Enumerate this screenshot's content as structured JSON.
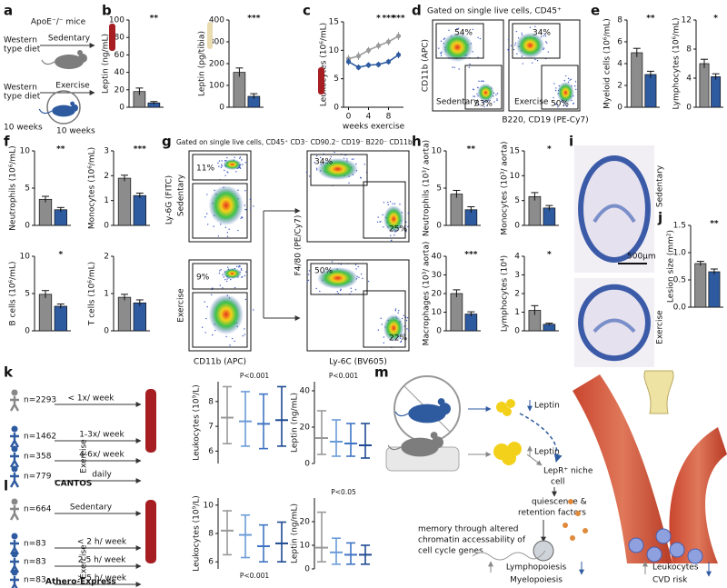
{
  "panel_labels": [
    "a",
    "b",
    "c",
    "d",
    "e",
    "f",
    "g",
    "h",
    "i",
    "j",
    "k",
    "l",
    "m"
  ],
  "a": {
    "title": "ApoE⁻/⁻ mice",
    "diet_1": [
      "Western",
      "type diet"
    ],
    "group_1": "Sedentary",
    "diet_2": [
      "Western",
      "type diet"
    ],
    "duration_1": "10 weeks",
    "group_2": "Exercise",
    "duration_2": "10 weeks"
  },
  "d": {
    "gate_title": "Gated on single live cells, CD45⁺",
    "y_label": "CD11b (APC)",
    "x_label": "B220, CD19 (PE-Cy7)",
    "sedentary": {
      "name": "Sedentary",
      "myeloid": "54%",
      "lymphoid": "33%"
    },
    "exercise": {
      "name": "Exercise",
      "myeloid": "34%",
      "lymphoid": "50%"
    }
  },
  "g": {
    "gate_title": "Gated on single live cells, CD45⁺ CD3⁻ CD90.2⁻ CD19⁻ B220⁻ CD11b⁺",
    "left_y_label": "Ly-6G (FITC)",
    "left_x_label": "CD11b (APC)",
    "right_y_label": "F4/80 (PE/Cy7)",
    "right_x_label": "Ly-6C (BV605)",
    "sedentary": {
      "name": "Sedentary",
      "neutrophils": "11%",
      "macrophages": "34%",
      "monocytes": "25%"
    },
    "exercise": {
      "name": "Exercise",
      "neutrophils": "9%",
      "macrophages": "50%",
      "monocytes": "22%"
    }
  },
  "i": {
    "sedentary": "Sedentary",
    "exercise": "Exercise",
    "scale_bar": "500μm"
  },
  "k": {
    "rows": [
      {
        "n": "n=2293",
        "label": "< 1x/ week"
      },
      {
        "n": "n=1462",
        "label": "1-3x/ week"
      },
      {
        "n": "n=358",
        "label": "4-6x/ week"
      },
      {
        "n": "n=779",
        "label": "daily"
      }
    ],
    "group": "Exercise",
    "cohort": "CANTOS"
  },
  "l": {
    "rows": [
      {
        "n": "n=664",
        "label": "Sedentary"
      },
      {
        "n": "n=83",
        "label": "< 2 h/ week"
      },
      {
        "n": "n=83",
        "label": "2-5 h/ week"
      },
      {
        "n": "n=83",
        "label": "> 5 h/ week"
      }
    ],
    "group": "Exercise",
    "cohort": "Athero-Express"
  },
  "m": {
    "leptin_down": "Leptin",
    "leptin_up": "Leptin",
    "niche": [
      "LepR⁺ niche",
      "cell"
    ],
    "factors": [
      "quiescence &",
      "retention factors"
    ],
    "memory": [
      "memory through altered",
      "chromatin accessability of",
      "cell cycle genes"
    ],
    "poiesis": [
      "Lymphopoiesis",
      "Myelopoiesis"
    ],
    "outcome": [
      "Leukocytes",
      "CVD risk"
    ]
  },
  "chart_data": [
    {
      "type": "bar",
      "ylabel": "Leptin (ng/mL)",
      "ylim": [
        0,
        100
      ],
      "yticks": [
        0,
        20,
        40,
        60,
        80,
        100
      ],
      "values": [
        18,
        5
      ],
      "errors": [
        4,
        1.5
      ],
      "colors": [
        "#8c8c8c",
        "#2e5aa0"
      ],
      "annotation": "**"
    },
    {
      "type": "bar",
      "ylabel": "Leptin (pg/tibia)",
      "ylim": [
        0,
        400
      ],
      "yticks": [
        0,
        100,
        200,
        300,
        400
      ],
      "values": [
        160,
        50
      ],
      "errors": [
        20,
        12
      ],
      "colors": [
        "#8c8c8c",
        "#2e5aa0"
      ],
      "annotation": "***"
    },
    {
      "type": "line",
      "ylabel": "Leukocytes (10⁶/mL)",
      "xlabel": "weeks exercise",
      "xlim": [
        -1,
        11
      ],
      "xticks": [
        0,
        4,
        8
      ],
      "ylim": [
        0,
        15
      ],
      "yticks": [
        0,
        5,
        10,
        15
      ],
      "x": [
        0,
        2,
        4,
        6,
        8,
        10
      ],
      "series": [
        {
          "color": "#9a9a9a",
          "values": [
            8.5,
            9,
            10,
            10.8,
            11.5,
            12.5
          ],
          "errors": [
            0.7,
            0.7,
            0.6,
            0.6,
            0.6,
            0.7
          ]
        },
        {
          "color": "#2e5aa0",
          "values": [
            8,
            7,
            7.4,
            7.5,
            8,
            9.2
          ],
          "errors": [
            0.6,
            0.5,
            0.5,
            0.5,
            0.5,
            0.6
          ]
        }
      ],
      "annotations": [
        {
          "x": 6,
          "label": "*"
        },
        {
          "x": 8,
          "label": "***"
        },
        {
          "x": 10,
          "label": "***"
        }
      ]
    },
    {
      "type": "bar",
      "ylabel": "Myeloid cells (10⁶/mL)",
      "ylim": [
        0,
        8
      ],
      "yticks": [
        0,
        2,
        4,
        6,
        8
      ],
      "values": [
        5,
        3
      ],
      "errors": [
        0.4,
        0.3
      ],
      "colors": [
        "#8c8c8c",
        "#2e5aa0"
      ],
      "annotation": "**"
    },
    {
      "type": "bar",
      "ylabel": "Lymphocytes (10⁶/mL)",
      "ylim": [
        0,
        12
      ],
      "yticks": [
        0,
        4,
        8,
        12
      ],
      "values": [
        6,
        4.2
      ],
      "errors": [
        0.6,
        0.4
      ],
      "colors": [
        "#8c8c8c",
        "#2e5aa0"
      ],
      "annotation": "*"
    },
    {
      "type": "bar",
      "ylabel": "Neutrophils (10⁶/mL)",
      "ylim": [
        0,
        10
      ],
      "yticks": [
        0,
        5,
        10
      ],
      "values": [
        3.5,
        2.1
      ],
      "errors": [
        0.4,
        0.3
      ],
      "colors": [
        "#8c8c8c",
        "#2e5aa0"
      ],
      "annotation": "**"
    },
    {
      "type": "bar",
      "ylabel": "Monocytes (10⁶/mL)",
      "ylim": [
        0,
        3
      ],
      "yticks": [
        0,
        1,
        2,
        3
      ],
      "values": [
        1.9,
        1.2
      ],
      "errors": [
        0.12,
        0.1
      ],
      "colors": [
        "#8c8c8c",
        "#2e5aa0"
      ],
      "annotation": "***"
    },
    {
      "type": "bar",
      "ylabel": "B cells (10⁶/mL)",
      "ylim": [
        0,
        10
      ],
      "yticks": [
        0,
        5,
        10
      ],
      "values": [
        4.9,
        3.3
      ],
      "errors": [
        0.5,
        0.3
      ],
      "colors": [
        "#8c8c8c",
        "#2e5aa0"
      ],
      "annotation": "*"
    },
    {
      "type": "bar",
      "ylabel": "T cells (10⁶/mL)",
      "ylim": [
        0,
        2
      ],
      "yticks": [
        0,
        1,
        2
      ],
      "values": [
        0.9,
        0.75
      ],
      "errors": [
        0.08,
        0.08
      ],
      "colors": [
        "#8c8c8c",
        "#2e5aa0"
      ]
    },
    {
      "type": "bar",
      "ylabel": "Neutrophils (10³/ aorta)",
      "ylim": [
        0,
        10
      ],
      "yticks": [
        0,
        5,
        10
      ],
      "values": [
        4.2,
        2.1
      ],
      "errors": [
        0.5,
        0.4
      ],
      "colors": [
        "#8c8c8c",
        "#2e5aa0"
      ],
      "annotation": "**"
    },
    {
      "type": "bar",
      "ylabel": "Monocytes (10³/ aorta)",
      "ylim": [
        0,
        15
      ],
      "yticks": [
        0,
        5,
        10,
        15
      ],
      "values": [
        5.8,
        3.5
      ],
      "errors": [
        0.8,
        0.5
      ],
      "colors": [
        "#8c8c8c",
        "#2e5aa0"
      ],
      "annotation": "*"
    },
    {
      "type": "bar",
      "ylabel": "Macrophages (10³/ aorta)",
      "ylim": [
        0,
        40
      ],
      "yticks": [
        0,
        10,
        20,
        30,
        40
      ],
      "values": [
        20,
        9
      ],
      "errors": [
        2,
        1.2
      ],
      "colors": [
        "#8c8c8c",
        "#2e5aa0"
      ],
      "annotation": "***"
    },
    {
      "type": "bar",
      "ylabel": "Lymphocytes (10⁴)",
      "ylim": [
        0,
        4
      ],
      "yticks": [
        0,
        1,
        2,
        3,
        4
      ],
      "values": [
        1.1,
        0.35
      ],
      "errors": [
        0.25,
        0.06
      ],
      "colors": [
        "#8c8c8c",
        "#2e5aa0"
      ],
      "annotation": "*"
    },
    {
      "type": "bar",
      "ylabel": "Lesion size (mm²)",
      "ylim": [
        0,
        1.5
      ],
      "yticks": [
        {
          "value": 0,
          "label": "0.0"
        },
        0.5,
        {
          "value": 1,
          "label": "1.0"
        },
        1.5
      ],
      "values": [
        0.8,
        0.65
      ],
      "errors": [
        0.04,
        0.05
      ],
      "colors": [
        "#8c8c8c",
        "#2e5aa0"
      ],
      "annotation": "**"
    },
    {
      "type": "forest",
      "ylabel": "Leukocytes (10⁹/L)",
      "ylim": [
        5.5,
        8.8
      ],
      "yticks": [
        6,
        7,
        8
      ],
      "values": [
        7.35,
        7.2,
        7.1,
        7.25
      ],
      "lower": [
        6.3,
        6.2,
        6.1,
        6.2
      ],
      "upper": [
        8.6,
        8.4,
        8.3,
        8.6
      ],
      "colors": [
        "#999999",
        "#6b9bd8",
        "#3f74c4",
        "#1f4a92"
      ],
      "annotation": "P<0.001"
    },
    {
      "type": "forest",
      "ylabel": "Leptin (ng/mL)",
      "ylim": [
        0,
        45
      ],
      "yticks": [
        0,
        20,
        40
      ],
      "values": [
        14,
        12,
        11,
        10
      ],
      "lower": [
        5,
        4,
        4,
        3
      ],
      "upper": [
        29,
        24,
        22,
        22
      ],
      "colors": [
        "#999999",
        "#6b9bd8",
        "#3f74c4",
        "#1f4a92"
      ],
      "annotation": "P<0.001"
    },
    {
      "type": "forest",
      "ylabel": "Leukocytes (10⁹/L)",
      "ylim": [
        5.5,
        10.5
      ],
      "yticks": [
        6,
        8,
        10
      ],
      "values": [
        8.2,
        7.9,
        7.1,
        7.3
      ],
      "lower": [
        6.5,
        6.3,
        6.0,
        6.0
      ],
      "upper": [
        9.6,
        9.3,
        8.6,
        8.8
      ],
      "colors": [
        "#999999",
        "#6b9bd8",
        "#3f74c4",
        "#1f4a92"
      ],
      "annotation": "P<0.001"
    },
    {
      "type": "forest",
      "ylabel": "Leptin (ng/mL)",
      "ylim": [
        0,
        30
      ],
      "yticks": [
        0,
        10,
        20
      ],
      "values": [
        9,
        7,
        6,
        6
      ],
      "lower": [
        3,
        2,
        2,
        2
      ],
      "upper": [
        24,
        13,
        11,
        10
      ],
      "colors": [
        "#999999",
        "#6b9bd8",
        "#3f74c4",
        "#1f4a92"
      ],
      "annotation": "P<0.05"
    }
  ]
}
